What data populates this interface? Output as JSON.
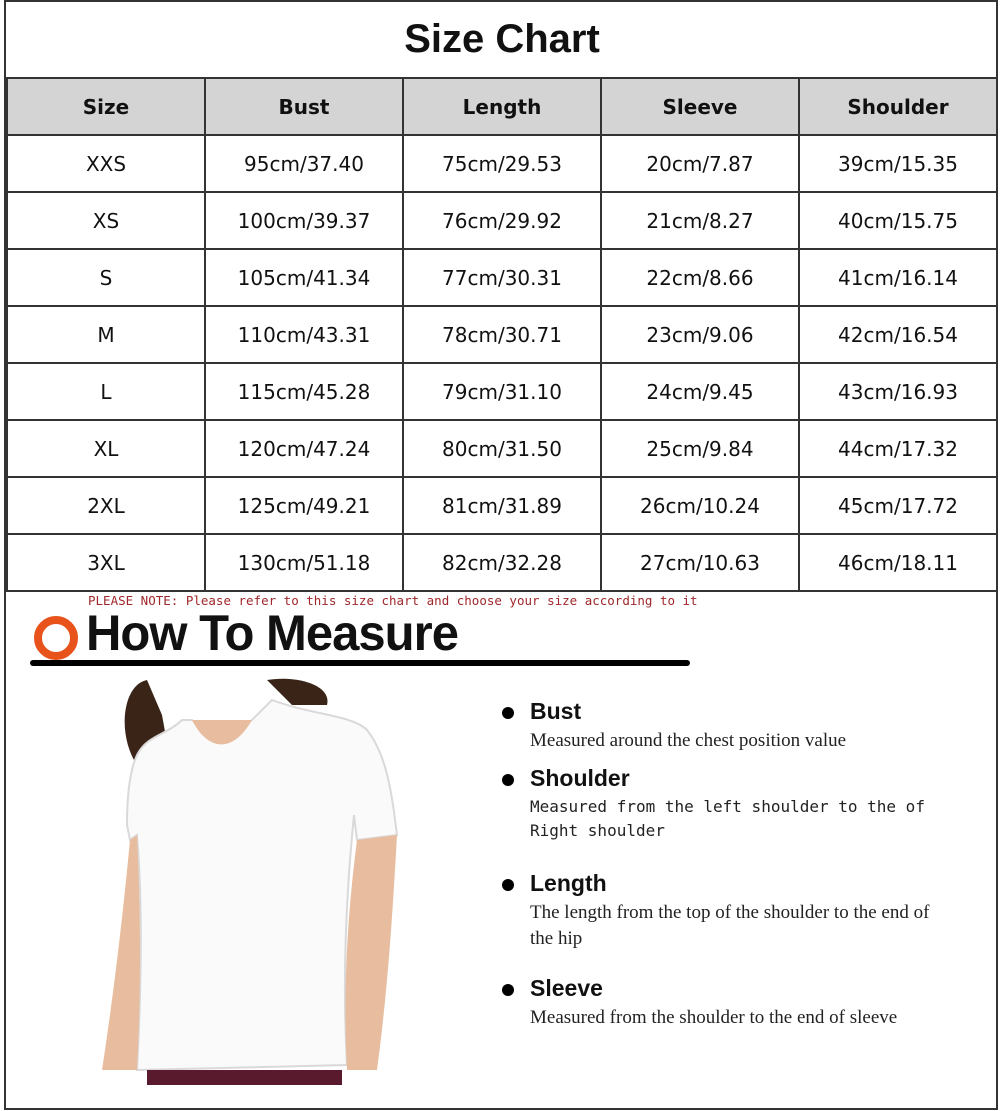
{
  "title": "Size Chart",
  "headers": [
    "Size",
    "Bust",
    "Length",
    "Sleeve",
    "Shoulder"
  ],
  "rows": [
    [
      "XXS",
      "95cm/37.40",
      "75cm/29.53",
      "20cm/7.87",
      "39cm/15.35"
    ],
    [
      "XS",
      "100cm/39.37",
      "76cm/29.92",
      "21cm/8.27",
      "40cm/15.75"
    ],
    [
      "S",
      "105cm/41.34",
      "77cm/30.31",
      "22cm/8.66",
      "41cm/16.14"
    ],
    [
      "M",
      "110cm/43.31",
      "78cm/30.71",
      "23cm/9.06",
      "42cm/16.54"
    ],
    [
      "L",
      "115cm/45.28",
      "79cm/31.10",
      "24cm/9.45",
      "43cm/16.93"
    ],
    [
      "XL",
      "120cm/47.24",
      "80cm/31.50",
      "25cm/9.84",
      "44cm/17.32"
    ],
    [
      "2XL",
      "125cm/49.21",
      "81cm/31.89",
      "26cm/10.24",
      "45cm/17.72"
    ],
    [
      "3XL",
      "130cm/51.18",
      "82cm/32.28",
      "27cm/10.63",
      "46cm/18.11"
    ]
  ],
  "note": "PLEASE NOTE: Please refer to this size chart and choose your size according to it",
  "how_to_measure": "How To Measure",
  "colors": {
    "header_bg": "#d4d4d4",
    "accent": "#e8521b",
    "note": "#a0272b"
  },
  "measures": [
    {
      "name": "Bust",
      "desc": "Measured around the chest position value"
    },
    {
      "name": "Shoulder",
      "desc": "Measured from the left shoulder to the of Right shoulder"
    },
    {
      "name": "Length",
      "desc": "The length from the top of the shoulder to the end of the hip"
    },
    {
      "name": "Sleeve",
      "desc": "Measured from the shoulder to the end of sleeve"
    }
  ]
}
